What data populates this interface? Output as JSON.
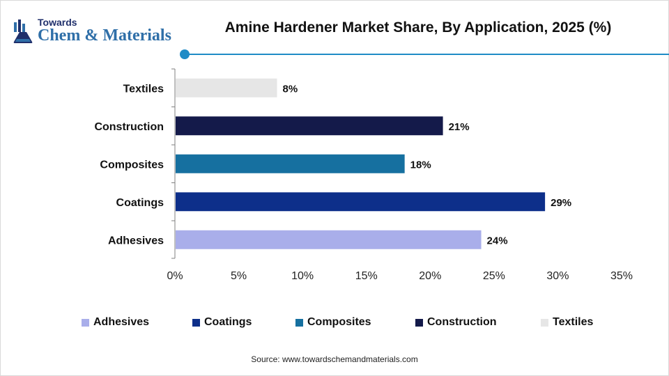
{
  "logo": {
    "line1": "Towards",
    "line2": "Chem & Materials"
  },
  "title": "Amine Hardener Market Share, By Application, 2025 (%)",
  "source": "Source: www.towardschemandmaterials.com",
  "colors": {
    "accent": "#1f8bc6",
    "axis": "#7f7f7f"
  },
  "chart_data": {
    "type": "bar",
    "orientation": "horizontal",
    "categories": [
      "Textiles",
      "Construction",
      "Composites",
      "Coatings",
      "Adhesives"
    ],
    "values": [
      8,
      21,
      18,
      29,
      24
    ],
    "value_labels": [
      "8%",
      "21%",
      "18%",
      "29%",
      "24%"
    ],
    "bar_colors": [
      "#e6e6e6",
      "#141a4a",
      "#1670a0",
      "#0d2f8a",
      "#a9aeea"
    ],
    "xlim": [
      0,
      35
    ],
    "x_ticks": [
      0,
      5,
      10,
      15,
      20,
      25,
      30,
      35
    ],
    "x_tick_labels": [
      "0%",
      "5%",
      "10%",
      "15%",
      "20%",
      "25%",
      "30%",
      "35%"
    ],
    "grid": false,
    "legend": {
      "placement": "bottom",
      "entries": [
        {
          "label": "Adhesives",
          "color": "#a9aeea"
        },
        {
          "label": "Coatings",
          "color": "#0d2f8a"
        },
        {
          "label": "Composites",
          "color": "#1670a0"
        },
        {
          "label": "Construction",
          "color": "#141a4a"
        },
        {
          "label": "Textiles",
          "color": "#e6e6e6"
        }
      ]
    }
  }
}
